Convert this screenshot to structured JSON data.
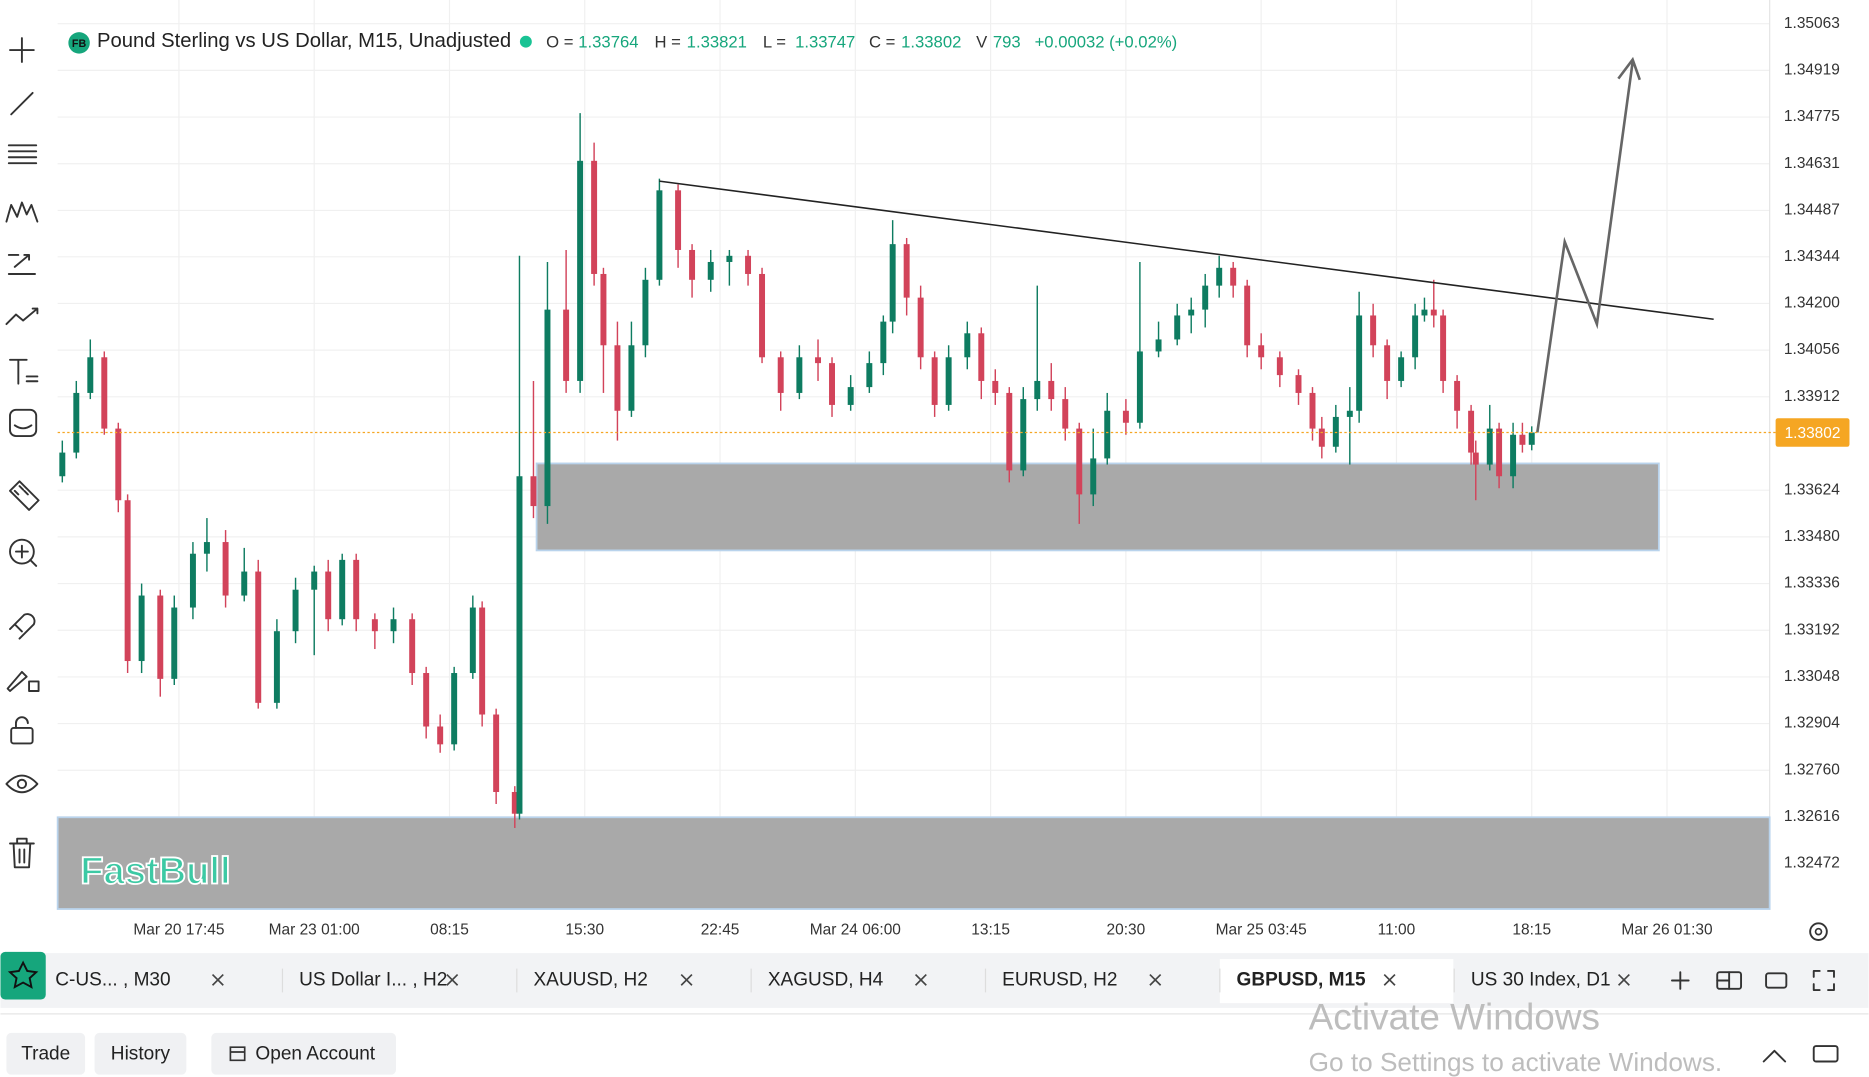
{
  "chart_data": {
    "type": "candlestick",
    "symbol_badge": "FB",
    "title": "Pound Sterling vs US Dollar, M15, Unadjusted",
    "legend_values": [
      {
        "label": "O =",
        "value": 1.33764
      },
      {
        "label": "H =",
        "value": 1.33821
      },
      {
        "label": "L =",
        "value": 1.33747
      },
      {
        "label": "C =",
        "value": 1.33802
      },
      {
        "label": "V",
        "value": 793
      }
    ],
    "change": "+0.00032 (+0.02%)",
    "current_price": 1.33802,
    "up_color": "#0e7c61",
    "down_color": "#d2435a",
    "grid": true,
    "xlim": [
      0,
      367
    ],
    "ylim": [
      1.32332,
      1.35081
    ],
    "xticks": [
      {
        "value": 26,
        "label": "Mar 20 17:45"
      },
      {
        "value": 55,
        "label": "Mar 23 01:00"
      },
      {
        "value": 84,
        "label": "08:15"
      },
      {
        "value": 113,
        "label": "15:30"
      },
      {
        "value": 142,
        "label": "22:45"
      },
      {
        "value": 171,
        "label": "Mar 24 06:00"
      },
      {
        "value": 200,
        "label": "13:15"
      },
      {
        "value": 229,
        "label": "20:30"
      },
      {
        "value": 258,
        "label": "Mar 25 03:45"
      },
      {
        "value": 287,
        "label": "11:00"
      },
      {
        "value": 316,
        "label": "18:15"
      },
      {
        "value": 345,
        "label": "Mar 26 01:30"
      }
    ],
    "yticks": [
      1.35063,
      1.34919,
      1.34775,
      1.34631,
      1.34487,
      1.34344,
      {
        "value": 1.342,
        "label": "1.34200"
      },
      1.34056,
      1.33912,
      1.33624,
      {
        "value": 1.3348,
        "label": "1.33480"
      },
      1.33336,
      1.33192,
      1.33048,
      1.32904,
      {
        "value": 1.3276,
        "label": "1.32760"
      },
      1.32616,
      1.32472
    ],
    "candles": [
      {
        "x": 1,
        "o": 1.33667,
        "h": 1.33777,
        "l": 1.33648,
        "c": 1.3374
      },
      {
        "x": 4,
        "o": 1.3374,
        "h": 1.33961,
        "l": 1.33722,
        "c": 1.33924
      },
      {
        "x": 7,
        "o": 1.33924,
        "h": 1.34089,
        "l": 1.33905,
        "c": 1.34034
      },
      {
        "x": 10,
        "o": 1.34034,
        "h": 1.34052,
        "l": 1.33795,
        "c": 1.33814
      },
      {
        "x": 13,
        "o": 1.33814,
        "h": 1.33832,
        "l": 1.33556,
        "c": 1.33593
      },
      {
        "x": 15,
        "o": 1.33593,
        "h": 1.33611,
        "l": 1.3306,
        "c": 1.33097
      },
      {
        "x": 18,
        "o": 1.33097,
        "h": 1.33336,
        "l": 1.3306,
        "c": 1.33299
      },
      {
        "x": 22,
        "o": 1.33299,
        "h": 1.33317,
        "l": 1.32987,
        "c": 1.33042
      },
      {
        "x": 25,
        "o": 1.33042,
        "h": 1.33299,
        "l": 1.33023,
        "c": 1.33262
      },
      {
        "x": 29,
        "o": 1.33262,
        "h": 1.33464,
        "l": 1.33226,
        "c": 1.33428
      },
      {
        "x": 32,
        "o": 1.33428,
        "h": 1.33538,
        "l": 1.33373,
        "c": 1.33464
      },
      {
        "x": 36,
        "o": 1.33464,
        "h": 1.33501,
        "l": 1.33262,
        "c": 1.33299
      },
      {
        "x": 40,
        "o": 1.33299,
        "h": 1.33446,
        "l": 1.33281,
        "c": 1.33373
      },
      {
        "x": 43,
        "o": 1.33373,
        "h": 1.33409,
        "l": 1.3295,
        "c": 1.32968
      },
      {
        "x": 47,
        "o": 1.32968,
        "h": 1.33226,
        "l": 1.3295,
        "c": 1.33189
      },
      {
        "x": 51,
        "o": 1.33189,
        "h": 1.33354,
        "l": 1.33152,
        "c": 1.33317
      },
      {
        "x": 55,
        "o": 1.33317,
        "h": 1.33391,
        "l": 1.33115,
        "c": 1.33373
      },
      {
        "x": 58,
        "o": 1.33373,
        "h": 1.33409,
        "l": 1.33189,
        "c": 1.33226
      },
      {
        "x": 61,
        "o": 1.33226,
        "h": 1.33428,
        "l": 1.33207,
        "c": 1.33409
      },
      {
        "x": 64,
        "o": 1.33409,
        "h": 1.33428,
        "l": 1.33189,
        "c": 1.33226
      },
      {
        "x": 68,
        "o": 1.33226,
        "h": 1.33244,
        "l": 1.33134,
        "c": 1.33189
      },
      {
        "x": 72,
        "o": 1.33189,
        "h": 1.33262,
        "l": 1.33152,
        "c": 1.33226
      },
      {
        "x": 76,
        "o": 1.33226,
        "h": 1.33244,
        "l": 1.33023,
        "c": 1.3306
      },
      {
        "x": 79,
        "o": 1.3306,
        "h": 1.33079,
        "l": 1.32858,
        "c": 1.32895
      },
      {
        "x": 82,
        "o": 1.32895,
        "h": 1.32932,
        "l": 1.32814,
        "c": 1.3284
      },
      {
        "x": 85,
        "o": 1.3284,
        "h": 1.33079,
        "l": 1.32821,
        "c": 1.3306
      },
      {
        "x": 89,
        "o": 1.3306,
        "h": 1.33299,
        "l": 1.33042,
        "c": 1.33262
      },
      {
        "x": 91,
        "o": 1.33262,
        "h": 1.33281,
        "l": 1.32895,
        "c": 1.32932
      },
      {
        "x": 94,
        "o": 1.32932,
        "h": 1.3295,
        "l": 1.32656,
        "c": 1.32693
      },
      {
        "x": 98,
        "o": 1.32693,
        "h": 1.32711,
        "l": 1.32582,
        "c": 1.32626
      },
      {
        "x": 99,
        "o": 1.32626,
        "h": 1.34347,
        "l": 1.32608,
        "c": 1.33667
      },
      {
        "x": 102,
        "o": 1.33667,
        "h": 1.33961,
        "l": 1.33538,
        "c": 1.33575
      },
      {
        "x": 105,
        "o": 1.33575,
        "h": 1.34328,
        "l": 1.3352,
        "c": 1.34181
      },
      {
        "x": 109,
        "o": 1.34181,
        "h": 1.34365,
        "l": 1.33924,
        "c": 1.33961
      },
      {
        "x": 112,
        "o": 1.33961,
        "h": 1.34787,
        "l": 1.33924,
        "c": 1.3464
      },
      {
        "x": 115,
        "o": 1.3464,
        "h": 1.34696,
        "l": 1.34255,
        "c": 1.34291
      },
      {
        "x": 117,
        "o": 1.34291,
        "h": 1.3431,
        "l": 1.33924,
        "c": 1.34071
      },
      {
        "x": 120,
        "o": 1.34071,
        "h": 1.34144,
        "l": 1.33777,
        "c": 1.33869
      },
      {
        "x": 123,
        "o": 1.33869,
        "h": 1.34144,
        "l": 1.3385,
        "c": 1.34071
      },
      {
        "x": 126,
        "o": 1.34071,
        "h": 1.3431,
        "l": 1.34034,
        "c": 1.34273
      },
      {
        "x": 129,
        "o": 1.34273,
        "h": 1.34585,
        "l": 1.34255,
        "c": 1.34549
      },
      {
        "x": 133,
        "o": 1.34549,
        "h": 1.34567,
        "l": 1.3431,
        "c": 1.34365
      },
      {
        "x": 136,
        "o": 1.34365,
        "h": 1.34383,
        "l": 1.34218,
        "c": 1.34273
      },
      {
        "x": 140,
        "o": 1.34273,
        "h": 1.34365,
        "l": 1.34236,
        "c": 1.34328
      },
      {
        "x": 144,
        "o": 1.34328,
        "h": 1.34365,
        "l": 1.34255,
        "c": 1.34347
      },
      {
        "x": 148,
        "o": 1.34347,
        "h": 1.34365,
        "l": 1.34255,
        "c": 1.34291
      },
      {
        "x": 151,
        "o": 1.34291,
        "h": 1.3431,
        "l": 1.34016,
        "c": 1.34034
      },
      {
        "x": 155,
        "o": 1.34034,
        "h": 1.34052,
        "l": 1.33869,
        "c": 1.33924
      },
      {
        "x": 159,
        "o": 1.33924,
        "h": 1.34071,
        "l": 1.33905,
        "c": 1.34034
      },
      {
        "x": 163,
        "o": 1.34034,
        "h": 1.34089,
        "l": 1.33961,
        "c": 1.34016
      },
      {
        "x": 166,
        "o": 1.34016,
        "h": 1.34034,
        "l": 1.3385,
        "c": 1.33887
      },
      {
        "x": 170,
        "o": 1.33887,
        "h": 1.33979,
        "l": 1.33869,
        "c": 1.33942
      },
      {
        "x": 174,
        "o": 1.33942,
        "h": 1.34052,
        "l": 1.33924,
        "c": 1.34016
      },
      {
        "x": 177,
        "o": 1.34016,
        "h": 1.34163,
        "l": 1.33979,
        "c": 1.34144
      },
      {
        "x": 179,
        "o": 1.34144,
        "h": 1.34457,
        "l": 1.34108,
        "c": 1.34383
      },
      {
        "x": 182,
        "o": 1.34383,
        "h": 1.34402,
        "l": 1.34163,
        "c": 1.34218
      },
      {
        "x": 185,
        "o": 1.34218,
        "h": 1.34255,
        "l": 1.33997,
        "c": 1.34034
      },
      {
        "x": 188,
        "o": 1.34034,
        "h": 1.34052,
        "l": 1.3385,
        "c": 1.33887
      },
      {
        "x": 191,
        "o": 1.33887,
        "h": 1.34071,
        "l": 1.33869,
        "c": 1.34034
      },
      {
        "x": 195,
        "o": 1.34034,
        "h": 1.34144,
        "l": 1.33997,
        "c": 1.34108
      },
      {
        "x": 198,
        "o": 1.34108,
        "h": 1.34126,
        "l": 1.33905,
        "c": 1.33961
      },
      {
        "x": 201,
        "o": 1.33961,
        "h": 1.33997,
        "l": 1.33887,
        "c": 1.33924
      },
      {
        "x": 204,
        "o": 1.33924,
        "h": 1.33942,
        "l": 1.33648,
        "c": 1.33685
      },
      {
        "x": 207,
        "o": 1.33685,
        "h": 1.33942,
        "l": 1.33667,
        "c": 1.33905
      },
      {
        "x": 210,
        "o": 1.33905,
        "h": 1.34255,
        "l": 1.33869,
        "c": 1.33961
      },
      {
        "x": 213,
        "o": 1.33961,
        "h": 1.34016,
        "l": 1.33869,
        "c": 1.33905
      },
      {
        "x": 216,
        "o": 1.33905,
        "h": 1.33942,
        "l": 1.33777,
        "c": 1.33814
      },
      {
        "x": 219,
        "o": 1.33814,
        "h": 1.33832,
        "l": 1.3352,
        "c": 1.33611
      },
      {
        "x": 222,
        "o": 1.33611,
        "h": 1.33814,
        "l": 1.33575,
        "c": 1.33722
      },
      {
        "x": 225,
        "o": 1.33722,
        "h": 1.33924,
        "l": 1.33703,
        "c": 1.33869
      },
      {
        "x": 229,
        "o": 1.33869,
        "h": 1.33905,
        "l": 1.33795,
        "c": 1.33832
      },
      {
        "x": 232,
        "o": 1.33832,
        "h": 1.34328,
        "l": 1.33814,
        "c": 1.34052
      },
      {
        "x": 236,
        "o": 1.34052,
        "h": 1.34144,
        "l": 1.34034,
        "c": 1.34089
      },
      {
        "x": 240,
        "o": 1.34089,
        "h": 1.34199,
        "l": 1.34071,
        "c": 1.34163
      },
      {
        "x": 243,
        "o": 1.34163,
        "h": 1.34218,
        "l": 1.34108,
        "c": 1.34181
      },
      {
        "x": 246,
        "o": 1.34181,
        "h": 1.34291,
        "l": 1.34126,
        "c": 1.34255
      },
      {
        "x": 249,
        "o": 1.34255,
        "h": 1.34347,
        "l": 1.34218,
        "c": 1.3431
      },
      {
        "x": 252,
        "o": 1.3431,
        "h": 1.34328,
        "l": 1.34218,
        "c": 1.34255
      },
      {
        "x": 255,
        "o": 1.34255,
        "h": 1.34273,
        "l": 1.34034,
        "c": 1.34071
      },
      {
        "x": 258,
        "o": 1.34071,
        "h": 1.34108,
        "l": 1.33997,
        "c": 1.34034
      },
      {
        "x": 262,
        "o": 1.34034,
        "h": 1.34052,
        "l": 1.33942,
        "c": 1.33979
      },
      {
        "x": 266,
        "o": 1.33979,
        "h": 1.33997,
        "l": 1.33887,
        "c": 1.33924
      },
      {
        "x": 269,
        "o": 1.33924,
        "h": 1.33942,
        "l": 1.33777,
        "c": 1.33814
      },
      {
        "x": 271,
        "o": 1.33814,
        "h": 1.3385,
        "l": 1.33722,
        "c": 1.33758
      },
      {
        "x": 274,
        "o": 1.33758,
        "h": 1.33887,
        "l": 1.3374,
        "c": 1.3385
      },
      {
        "x": 277,
        "o": 1.3385,
        "h": 1.33942,
        "l": 1.33703,
        "c": 1.33869
      },
      {
        "x": 279,
        "o": 1.33869,
        "h": 1.34236,
        "l": 1.33832,
        "c": 1.34163
      },
      {
        "x": 282,
        "o": 1.34163,
        "h": 1.34199,
        "l": 1.34034,
        "c": 1.34071
      },
      {
        "x": 285,
        "o": 1.34071,
        "h": 1.34089,
        "l": 1.33905,
        "c": 1.33961
      },
      {
        "x": 288,
        "o": 1.33961,
        "h": 1.34052,
        "l": 1.33942,
        "c": 1.34034
      },
      {
        "x": 291,
        "o": 1.34034,
        "h": 1.34199,
        "l": 1.33997,
        "c": 1.34163
      },
      {
        "x": 293,
        "o": 1.34163,
        "h": 1.34218,
        "l": 1.34144,
        "c": 1.34181
      },
      {
        "x": 295,
        "o": 1.34181,
        "h": 1.34273,
        "l": 1.34126,
        "c": 1.34163
      },
      {
        "x": 297,
        "o": 1.34163,
        "h": 1.34181,
        "l": 1.33924,
        "c": 1.33961
      },
      {
        "x": 300,
        "o": 1.33961,
        "h": 1.33979,
        "l": 1.33814,
        "c": 1.33869
      },
      {
        "x": 303,
        "o": 1.33869,
        "h": 1.33887,
        "l": 1.33703,
        "c": 1.3374
      },
      {
        "x": 304,
        "o": 1.3374,
        "h": 1.33777,
        "l": 1.33593,
        "c": 1.33703
      },
      {
        "x": 307,
        "o": 1.33703,
        "h": 1.33887,
        "l": 1.33685,
        "c": 1.33814
      },
      {
        "x": 309,
        "o": 1.33814,
        "h": 1.33832,
        "l": 1.3363,
        "c": 1.33667
      },
      {
        "x": 312,
        "o": 1.33667,
        "h": 1.33832,
        "l": 1.3363,
        "c": 1.33795
      },
      {
        "x": 314,
        "o": 1.33795,
        "h": 1.33832,
        "l": 1.3374,
        "c": 1.33764
      },
      {
        "x": 316,
        "o": 1.33764,
        "h": 1.33821,
        "l": 1.33747,
        "c": 1.33802
      }
    ]
  },
  "logo": "FastBull",
  "tabs": [
    "C-US... , M30",
    "US Dollar I... , H2",
    "XAUUSD, H2",
    "XAGUSD, H4",
    "EURUSD, H2",
    "GBPUSD, M15",
    "US 30 Index, D1"
  ],
  "bottom_bar": [
    "Trade",
    "History",
    "Open Account"
  ],
  "watermark": [
    "Activate Windows",
    "Go to Settings to activate Windows."
  ]
}
